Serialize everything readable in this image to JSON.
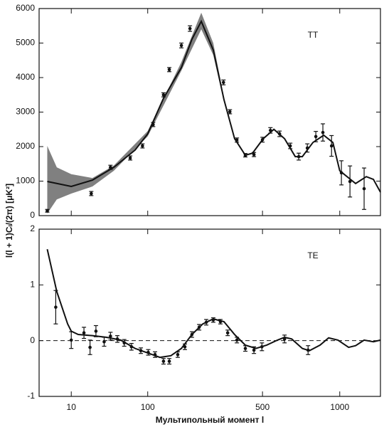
{
  "chart_data": [
    {
      "type": "line",
      "label": "TT",
      "ylabel": "l(l + 1)Cₗ/(2π) [μK²]",
      "xscale": "power",
      "xpower": 0.4,
      "xlim": [
        0.8,
        1350
      ],
      "ylim": [
        0,
        6000
      ],
      "yticks": [
        0,
        1000,
        2000,
        3000,
        4000,
        5000,
        6000
      ],
      "color": "#111111",
      "band_color": "#555555",
      "series": [
        {
          "kind": "band",
          "x": [
            2,
            4.3,
            10,
            24,
            46,
            100,
            180,
            241,
            283,
            324
          ],
          "lower": [
            60,
            470,
            640,
            845,
            1300,
            2300,
            4200,
            5400,
            4650,
            3300
          ],
          "upper": [
            2020,
            1400,
            1200,
            1090,
            1450,
            2450,
            4450,
            5880,
            5000,
            3420
          ]
        },
        {
          "kind": "line",
          "x": [
            2,
            10,
            24,
            46,
            77,
            100,
            134,
            180,
            211,
            241,
            283,
            324,
            368,
            416,
            450,
            504,
            561,
            622,
            687,
            732,
            803,
            879,
            947,
            1000,
            1129,
            1221,
            1285,
            1350
          ],
          "values": [
            990,
            845,
            1030,
            1400,
            1900,
            2370,
            3400,
            4290,
            5110,
            5630,
            4800,
            3360,
            2230,
            1750,
            1810,
            2230,
            2500,
            2230,
            1710,
            1710,
            2120,
            2330,
            2120,
            1300,
            930,
            1130,
            1050,
            680
          ]
        },
        {
          "kind": "errorbar",
          "x": [
            2,
            23,
            42,
            69,
            90,
            111,
            134,
            148,
            180,
            205,
            322,
            348,
            378,
            416,
            457,
            500,
            542,
            593,
            656,
            709,
            765,
            823,
            873,
            937,
            1013,
            1082,
            1202
          ],
          "values": [
            140,
            640,
            1400,
            1670,
            2020,
            2640,
            3500,
            4230,
            4930,
            5420,
            3860,
            3010,
            2190,
            1750,
            1770,
            2200,
            2470,
            2370,
            2020,
            1710,
            1960,
            2290,
            2410,
            2020,
            1240,
            990,
            780
          ],
          "errors": [
            40,
            60,
            60,
            60,
            60,
            60,
            60,
            60,
            70,
            80,
            70,
            60,
            60,
            50,
            60,
            70,
            80,
            80,
            80,
            100,
            120,
            150,
            250,
            300,
            350,
            450,
            600
          ]
        }
      ]
    },
    {
      "type": "line",
      "label": "TE",
      "xlabel": "Мультипольный момент l",
      "xscale": "power",
      "xpower": 0.4,
      "xlim": [
        0.8,
        1350
      ],
      "xticks": [
        10,
        100,
        500,
        1000
      ],
      "ylim": [
        -1,
        2
      ],
      "yticks": [
        -1,
        0,
        1,
        2
      ],
      "zero_line": true,
      "color": "#111111",
      "series": [
        {
          "kind": "line",
          "x": [
            2,
            4.3,
            8.3,
            10,
            13.8,
            24,
            37.7,
            55,
            77,
            103,
            126,
            152,
            180,
            211,
            246,
            283,
            324,
            368,
            416,
            467,
            522,
            581,
            622,
            665,
            732,
            779,
            853,
            915,
            986,
            1071,
            1129,
            1202,
            1285,
            1350
          ],
          "values": [
            1.64,
            0.88,
            0.3,
            0.17,
            0.11,
            0.09,
            0.06,
            0.01,
            -0.14,
            -0.23,
            -0.3,
            -0.27,
            -0.14,
            0.11,
            0.3,
            0.39,
            0.34,
            0.11,
            -0.08,
            -0.14,
            -0.08,
            0.01,
            0.06,
            0.03,
            -0.14,
            -0.18,
            -0.08,
            0.05,
            0.01,
            -0.12,
            -0.09,
            0.01,
            -0.02,
            0.01
          ]
        },
        {
          "kind": "errorbar",
          "x": [
            4,
            10,
            17.5,
            22,
            27,
            35,
            42,
            50.5,
            60,
            71,
            87,
            101,
            115,
            134,
            148,
            170,
            190,
            211,
            234,
            258,
            283,
            310,
            339,
            378,
            416,
            457,
            497,
            622,
            770
          ],
          "values": [
            0.6,
            0.01,
            0.14,
            -0.12,
            0.17,
            -0.02,
            0.08,
            0.03,
            -0.04,
            -0.11,
            -0.18,
            -0.21,
            -0.25,
            -0.37,
            -0.37,
            -0.25,
            -0.11,
            0.11,
            0.24,
            0.33,
            0.37,
            0.34,
            0.14,
            0.01,
            -0.14,
            -0.17,
            -0.11,
            0.03,
            -0.17
          ],
          "errors": [
            0.3,
            0.15,
            0.1,
            0.13,
            0.1,
            0.08,
            0.07,
            0.06,
            0.06,
            0.06,
            0.05,
            0.05,
            0.05,
            0.05,
            0.05,
            0.05,
            0.05,
            0.05,
            0.05,
            0.05,
            0.04,
            0.04,
            0.05,
            0.05,
            0.05,
            0.06,
            0.07,
            0.07,
            0.08
          ]
        }
      ]
    }
  ]
}
